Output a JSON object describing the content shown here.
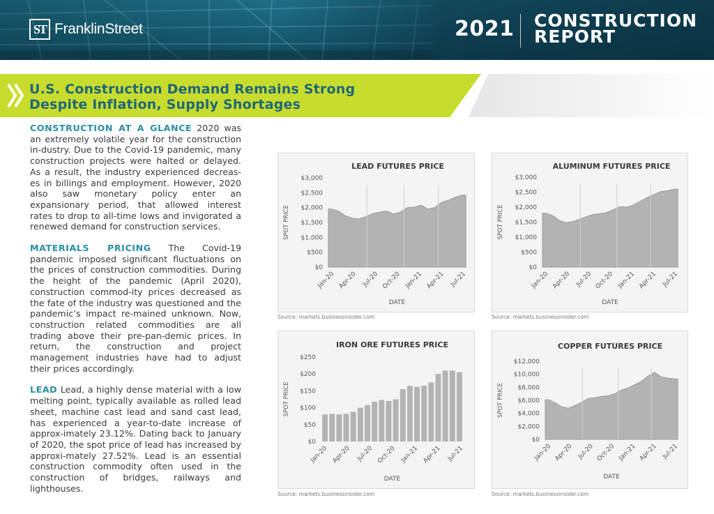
{
  "header": {
    "logo_mark": "ST",
    "logo_text": "FranklinStreet",
    "year": "2021",
    "report_title_line1": "CONSTRUCTION",
    "report_title_line2": "REPORT",
    "colors": {
      "banner": "#175d73",
      "accent_green": "#c8dc2e",
      "title_teal": "#1f6777",
      "lead_teal": "#2a8ea6"
    }
  },
  "section": {
    "title_line1": "U.S. Construction Demand Remains Strong",
    "title_line2": "Despite Inflation, Supply Shortages",
    "icon": "double-chevron-right-icon"
  },
  "body": {
    "p1_lead": "CONSTRUCTION AT A GLANCE",
    "p1_text": " 2020 was an extremely volatile year for the construction in-dustry. Due to the Covid-19 pandemic, many construction projects were halted or delayed. As a result, the industry experienced decreas-es in billings and employment. However, 2020 also saw monetary policy enter an expansionary period, that allowed interest rates to drop to all-time lows and invigorated a renewed demand for construction services.",
    "p2_lead": "MATERIALS PRICING",
    "p2_text": " The Covid-19 pandemic imposed significant fluctuations on the prices of construction commodities. During the height of the pandemic (April 2020), construction commod-ity prices decreased as the fate of the industry was questioned and the pandemic’s impact re-mained unknown. Now, construction related commodities are all trading above their pre-pan-demic prices. In return, the construction and project management industries have had to adjust their prices accordingly.",
    "p3_lead": "LEAD",
    "p3_text": " Lead, a highly dense material with a low melting point, typically available as rolled lead sheet, machine cast lead and sand cast lead, has experienced a year-to-date increase of approx-imately 23.12%. Dating back to January of 2020, the spot price of lead has increased by approxi-mately 27.52%. Lead is an essential construction commodity often used in the construction of bridges, railways and lighthouses."
  },
  "chart_data": [
    {
      "type": "area",
      "title": "LEAD FUTURES PRICE",
      "xlabel": "DATE",
      "ylabel": "SPOT PRICE",
      "yticks": [
        "$0",
        "$500",
        "$1,000",
        "$1,500",
        "$2,000",
        "$2,500",
        "$3,000"
      ],
      "ylim": [
        0,
        3000
      ],
      "xticks": [
        "Jan-20",
        "Apr-20",
        "Jul-20",
        "Oct-20",
        "Jan-21",
        "Apr-21",
        "Jul-21"
      ],
      "x": [
        "Jan-20",
        "Feb-20",
        "Mar-20",
        "Apr-20",
        "May-20",
        "Jun-20",
        "Jul-20",
        "Aug-20",
        "Sep-20",
        "Oct-20",
        "Nov-20",
        "Dec-20",
        "Jan-21",
        "Feb-21",
        "Mar-21",
        "Apr-21",
        "May-21",
        "Jun-21",
        "Jul-21",
        "Aug-21"
      ],
      "values": [
        1950,
        1880,
        1720,
        1640,
        1620,
        1700,
        1800,
        1850,
        1880,
        1790,
        1850,
        2000,
        2020,
        2080,
        1950,
        2000,
        2180,
        2250,
        2350,
        2420
      ],
      "source": "Source: markets.businessinsider.com"
    },
    {
      "type": "area",
      "title": "ALUMINUM FUTURES PRICE",
      "xlabel": "DATE",
      "ylabel": "SPOT PRICE",
      "yticks": [
        "$0",
        "$500",
        "$1,000",
        "$1,500",
        "$2,000",
        "$2,500",
        "$3,000"
      ],
      "ylim": [
        0,
        3000
      ],
      "xticks": [
        "Jan-20",
        "Apr-20",
        "Jul-20",
        "Oct-20",
        "Jan-21",
        "Apr-21",
        "Jul-21"
      ],
      "x": [
        "Jan-20",
        "Feb-20",
        "Mar-20",
        "Apr-20",
        "May-20",
        "Jun-20",
        "Jul-20",
        "Aug-20",
        "Sep-20",
        "Oct-20",
        "Nov-20",
        "Dec-20",
        "Jan-21",
        "Feb-21",
        "Mar-21",
        "Apr-21",
        "May-21",
        "Jun-21",
        "Jul-21",
        "Aug-21"
      ],
      "values": [
        1800,
        1720,
        1560,
        1480,
        1520,
        1600,
        1680,
        1760,
        1780,
        1820,
        1920,
        2020,
        2000,
        2080,
        2200,
        2320,
        2420,
        2520,
        2550,
        2600
      ],
      "source": "Source: markets.businessinsider.com"
    },
    {
      "type": "bar",
      "title": "IRON ORE FUTURES PRICE",
      "xlabel": "DATE",
      "ylabel": "SPOT PRICE",
      "yticks": [
        "$0",
        "$50",
        "$100",
        "$150",
        "$200",
        "$250"
      ],
      "ylim": [
        0,
        250
      ],
      "xticks": [
        "Jan-20",
        "Apr-20",
        "Jul-20",
        "Oct-20",
        "Jan-21",
        "Apr-21",
        "Jul-21"
      ],
      "x": [
        "Jan-20",
        "Feb-20",
        "Mar-20",
        "Apr-20",
        "May-20",
        "Jun-20",
        "Jul-20",
        "Aug-20",
        "Sep-20",
        "Oct-20",
        "Nov-20",
        "Dec-20",
        "Jan-21",
        "Feb-21",
        "Mar-21",
        "Apr-21",
        "May-21",
        "Jun-21",
        "Jul-21",
        "Aug-21"
      ],
      "values": [
        80,
        82,
        80,
        82,
        88,
        100,
        108,
        118,
        123,
        120,
        125,
        155,
        165,
        162,
        165,
        175,
        200,
        210,
        210,
        205
      ],
      "source": "Source: markets.businessinsider.com"
    },
    {
      "type": "area",
      "title": "COPPER FUTURES PRICE",
      "xlabel": "DATE",
      "ylabel": "SPOT PRICE",
      "yticks": [
        "$0",
        "$2,000",
        "$4,000",
        "$6,000",
        "$8,000",
        "$10,000",
        "$12,000"
      ],
      "ylim": [
        0,
        12000
      ],
      "xticks": [
        "Jan-20",
        "Apr-20",
        "Jul-20",
        "Oct-20",
        "Jan-21",
        "Apr-21",
        "Jul-21"
      ],
      "x": [
        "Jan-20",
        "Feb-20",
        "Mar-20",
        "Apr-20",
        "May-20",
        "Jun-20",
        "Jul-20",
        "Aug-20",
        "Sep-20",
        "Oct-20",
        "Nov-20",
        "Dec-20",
        "Jan-21",
        "Feb-21",
        "Mar-21",
        "Apr-21",
        "May-21",
        "Jun-21",
        "Jul-21",
        "Aug-21"
      ],
      "values": [
        6100,
        5600,
        5000,
        4800,
        5200,
        5700,
        6300,
        6400,
        6600,
        6700,
        7000,
        7600,
        7900,
        8400,
        8900,
        9700,
        10300,
        9600,
        9400,
        9300
      ],
      "source": "Source: markets.businessinsider.com"
    }
  ]
}
